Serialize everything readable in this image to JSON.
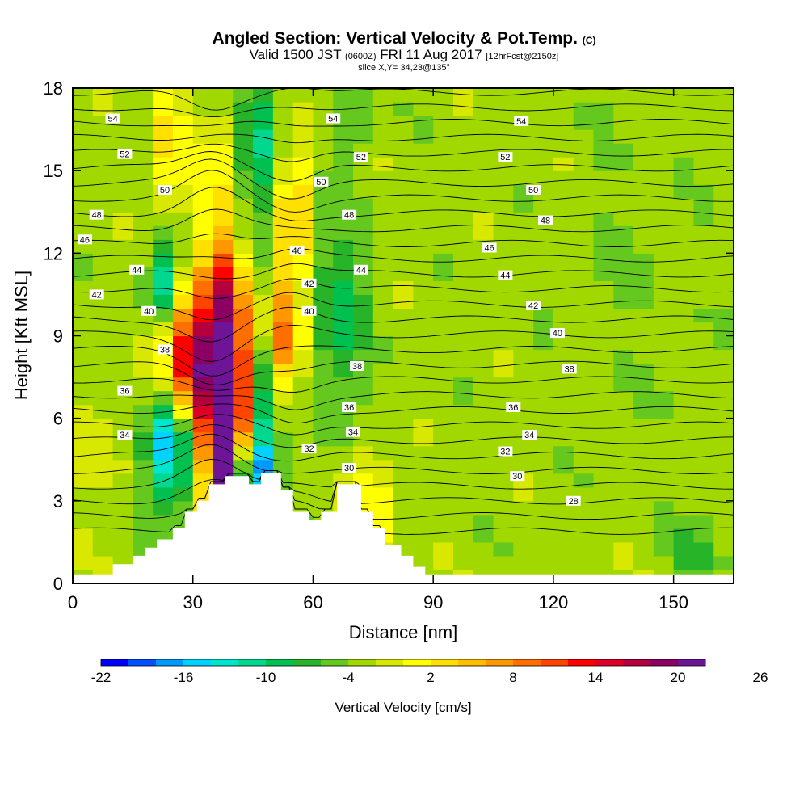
{
  "title": {
    "main": "Angled Section: Vertical Velocity & Pot.Temp.",
    "main_suffix": "(C)",
    "valid_prefix": "Valid 1500 JST",
    "valid_utc": "(0600Z)",
    "valid_date": "FRI 11 Aug 2017",
    "forecast": "[12hrFcst@2150z]",
    "slice": "slice X,Y= 34,23@135°"
  },
  "chart_data": {
    "type": "heatmap",
    "xlabel": "Distance [nm]",
    "ylabel": "Height [Kft MSL]",
    "xlim": [
      0,
      165
    ],
    "ylim": [
      0,
      18
    ],
    "x_ticks": [
      0,
      30,
      60,
      90,
      120,
      150
    ],
    "y_ticks": [
      0,
      3,
      6,
      9,
      12,
      15,
      18
    ],
    "colorbar": {
      "label": "Vertical Velocity [cm/s]",
      "tick_labels": [
        "-22",
        "-16",
        "-10",
        "-4",
        "2",
        "8",
        "14",
        "20",
        "26"
      ],
      "colors": [
        "#0000ff",
        "#0050ff",
        "#0098ff",
        "#00d2ff",
        "#00e6ce",
        "#00d890",
        "#00c050",
        "#28b428",
        "#64c81e",
        "#a0d800",
        "#d8e800",
        "#ffff00",
        "#ffe000",
        "#ffbe00",
        "#ff9800",
        "#ff6e00",
        "#ff4400",
        "#ff0000",
        "#dc0028",
        "#b4003c",
        "#8c0064",
        "#6e1496"
      ]
    },
    "cells": {
      "x_step_nm": 5,
      "y_step_kft": 0.5,
      "background_class": 9,
      "features": [
        {
          "x": 30,
          "y": 8.2,
          "sx": 5,
          "sy": 1.8,
          "v": 20
        },
        {
          "x": 39,
          "y": 7.3,
          "sx": 4,
          "sy": 2.5,
          "v": 22
        },
        {
          "x": 37,
          "y": 4.2,
          "sx": 3,
          "sy": 1.8,
          "v": 18
        },
        {
          "x": 53,
          "y": 9.0,
          "sx": 3,
          "sy": 1.5,
          "v": 12
        },
        {
          "x": 24,
          "y": 5.0,
          "sx": 4,
          "sy": 1.6,
          "v": -14
        },
        {
          "x": 23,
          "y": 11.0,
          "sx": 3,
          "sy": 1.2,
          "v": -10
        },
        {
          "x": 45,
          "y": 4.0,
          "sx": 3,
          "sy": 1.0,
          "v": -16
        },
        {
          "x": 47,
          "y": 6.5,
          "sx": 3,
          "sy": 2.0,
          "v": -8
        },
        {
          "x": 66,
          "y": 9.5,
          "sx": 5,
          "sy": 2.5,
          "v": -6
        },
        {
          "x": 47,
          "y": 16.0,
          "sx": 4,
          "sy": 2.0,
          "v": -7
        },
        {
          "x": 70,
          "y": 17.0,
          "sx": 3,
          "sy": 1.0,
          "v": -4
        },
        {
          "x": 24,
          "y": 16.0,
          "sx": 3,
          "sy": 2.5,
          "v": 6
        },
        {
          "x": 36,
          "y": 14.0,
          "sx": 3,
          "sy": 2.5,
          "v": 5
        },
        {
          "x": 55,
          "y": 13.5,
          "sx": 3,
          "sy": 2.0,
          "v": 8
        },
        {
          "x": 38,
          "y": 11.0,
          "sx": 3,
          "sy": 1.2,
          "v": 6
        },
        {
          "x": 8,
          "y": 5.0,
          "sx": 5,
          "sy": 2.0,
          "v": 2
        },
        {
          "x": 75,
          "y": 3.0,
          "sx": 4,
          "sy": 1.5,
          "v": 5
        },
        {
          "x": 140,
          "y": 12.0,
          "sx": 10,
          "sy": 4.0,
          "v": -1
        },
        {
          "x": 95,
          "y": 7.0,
          "sx": 8,
          "sy": 5.0,
          "v": 0
        },
        {
          "x": 110,
          "y": 3.0,
          "sx": 10,
          "sy": 2.0,
          "v": 0
        },
        {
          "x": 156,
          "y": 1.0,
          "sx": 4,
          "sy": 1.0,
          "v": -4
        }
      ]
    },
    "terrain_kft": [
      [
        0,
        0.3
      ],
      [
        10,
        0.3
      ],
      [
        10,
        0.7
      ],
      [
        15,
        0.7
      ],
      [
        15,
        1.0
      ],
      [
        18,
        1.0
      ],
      [
        18,
        1.3
      ],
      [
        21,
        1.3
      ],
      [
        21,
        1.6
      ],
      [
        25,
        1.6
      ],
      [
        25,
        2.0
      ],
      [
        28,
        2.0
      ],
      [
        28,
        2.6
      ],
      [
        31,
        2.6
      ],
      [
        31,
        3.0
      ],
      [
        34,
        3.0
      ],
      [
        34,
        3.6
      ],
      [
        38,
        3.6
      ],
      [
        38,
        3.9
      ],
      [
        44,
        3.9
      ],
      [
        44,
        3.6
      ],
      [
        47,
        3.6
      ],
      [
        47,
        4.0
      ],
      [
        52,
        4.0
      ],
      [
        52,
        3.4
      ],
      [
        55,
        3.4
      ],
      [
        55,
        2.6
      ],
      [
        59,
        2.6
      ],
      [
        59,
        2.3
      ],
      [
        62,
        2.3
      ],
      [
        62,
        2.6
      ],
      [
        66,
        2.6
      ],
      [
        66,
        3.6
      ],
      [
        72,
        3.6
      ],
      [
        72,
        2.6
      ],
      [
        75,
        2.6
      ],
      [
        75,
        2.0
      ],
      [
        78,
        2.0
      ],
      [
        78,
        1.4
      ],
      [
        82,
        1.4
      ],
      [
        82,
        1.0
      ],
      [
        85,
        1.0
      ],
      [
        85,
        0.6
      ],
      [
        88,
        0.6
      ],
      [
        88,
        0.3
      ],
      [
        165,
        0.3
      ]
    ],
    "isentropes": {
      "theta_c": [
        26,
        27,
        28,
        29,
        30,
        31,
        32,
        33,
        34,
        35,
        36,
        37,
        38,
        39,
        40,
        41,
        42,
        43,
        44,
        45,
        46,
        47,
        48,
        49,
        50,
        51,
        52,
        53,
        54,
        55
      ],
      "label_values": [
        28,
        30,
        32,
        34,
        36,
        38,
        40,
        42,
        44,
        46,
        48,
        50,
        52,
        54
      ],
      "base_height_kft": 3.0,
      "kft_per_degree": 0.55
    },
    "contour_labels": [
      {
        "x": 10,
        "y": 16.9,
        "text": "54"
      },
      {
        "x": 13,
        "y": 15.6,
        "text": "52"
      },
      {
        "x": 23,
        "y": 14.3,
        "text": "50"
      },
      {
        "x": 6,
        "y": 13.4,
        "text": "48"
      },
      {
        "x": 3,
        "y": 12.5,
        "text": "46"
      },
      {
        "x": 16,
        "y": 11.4,
        "text": "44"
      },
      {
        "x": 6,
        "y": 10.5,
        "text": "42"
      },
      {
        "x": 19,
        "y": 9.9,
        "text": "40"
      },
      {
        "x": 23,
        "y": 8.5,
        "text": "38"
      },
      {
        "x": 13,
        "y": 7.0,
        "text": "36"
      },
      {
        "x": 13,
        "y": 5.4,
        "text": "34"
      },
      {
        "x": 65,
        "y": 16.9,
        "text": "54"
      },
      {
        "x": 72,
        "y": 15.5,
        "text": "52"
      },
      {
        "x": 62,
        "y": 14.6,
        "text": "50"
      },
      {
        "x": 69,
        "y": 13.4,
        "text": "48"
      },
      {
        "x": 56,
        "y": 12.1,
        "text": "46"
      },
      {
        "x": 72,
        "y": 11.4,
        "text": "44"
      },
      {
        "x": 59,
        "y": 10.9,
        "text": "42"
      },
      {
        "x": 59,
        "y": 9.9,
        "text": "40"
      },
      {
        "x": 71,
        "y": 7.9,
        "text": "38"
      },
      {
        "x": 69,
        "y": 6.4,
        "text": "36"
      },
      {
        "x": 70,
        "y": 5.5,
        "text": "34"
      },
      {
        "x": 59,
        "y": 4.9,
        "text": "32"
      },
      {
        "x": 69,
        "y": 4.2,
        "text": "30"
      },
      {
        "x": 112,
        "y": 16.8,
        "text": "54"
      },
      {
        "x": 108,
        "y": 15.5,
        "text": "52"
      },
      {
        "x": 115,
        "y": 14.3,
        "text": "50"
      },
      {
        "x": 118,
        "y": 13.2,
        "text": "48"
      },
      {
        "x": 104,
        "y": 12.2,
        "text": "46"
      },
      {
        "x": 108,
        "y": 11.2,
        "text": "44"
      },
      {
        "x": 115,
        "y": 10.1,
        "text": "42"
      },
      {
        "x": 121,
        "y": 9.1,
        "text": "40"
      },
      {
        "x": 124,
        "y": 7.8,
        "text": "38"
      },
      {
        "x": 110,
        "y": 6.4,
        "text": "36"
      },
      {
        "x": 114,
        "y": 5.4,
        "text": "34"
      },
      {
        "x": 108,
        "y": 4.8,
        "text": "32"
      },
      {
        "x": 111,
        "y": 3.9,
        "text": "30"
      },
      {
        "x": 125,
        "y": 3.0,
        "text": "28"
      }
    ]
  }
}
